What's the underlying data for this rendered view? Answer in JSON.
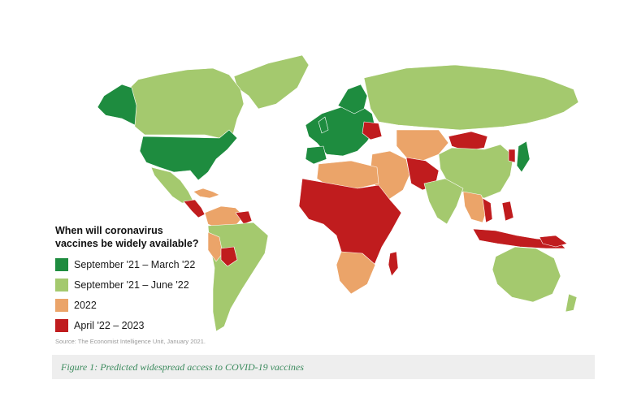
{
  "legend": {
    "title": "When will coronavirus\nvaccines be widely available?",
    "items": [
      {
        "label": "September '21 – March '22",
        "color": "#1e8c3f"
      },
      {
        "label": "September '21 – June '22",
        "color": "#a4c96e"
      },
      {
        "label": "2022",
        "color": "#eba469"
      },
      {
        "label": "April '22 – 2023",
        "color": "#c01c1e"
      }
    ]
  },
  "source": "Source: The Economist Intelligence Unit, January 2021.",
  "caption": "Figure 1: Predicted widespread access to COVID-19 vaccines",
  "colors": {
    "early": "#1e8c3f",
    "mid": "#a4c96e",
    "late": "#eba469",
    "latest": "#c01c1e",
    "border": "#ffffff"
  }
}
